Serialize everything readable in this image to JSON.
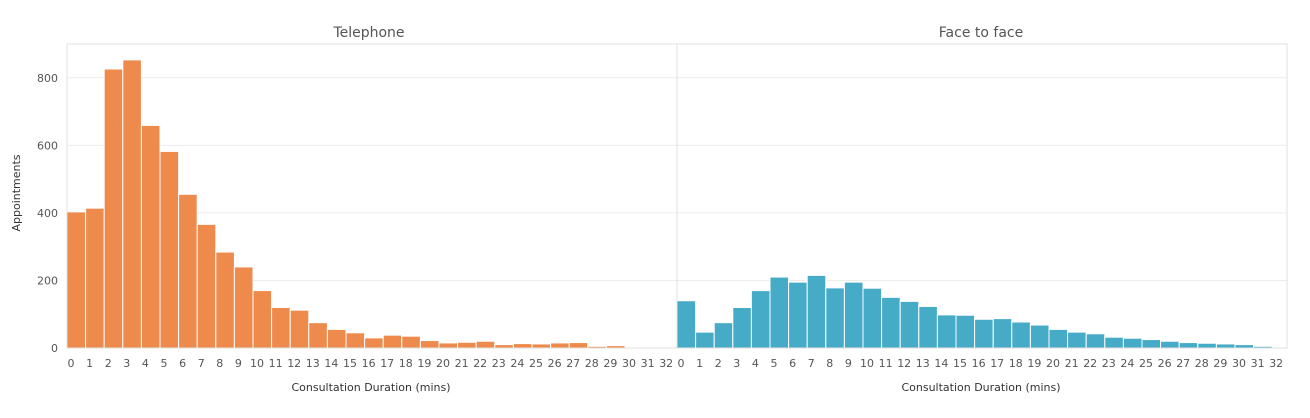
{
  "chart_data": {
    "type": "bar",
    "ylabel": "Appointments",
    "ylim": [
      0,
      900
    ],
    "yticks": [
      0,
      200,
      400,
      600,
      800
    ],
    "xticks": [
      0,
      1,
      2,
      3,
      4,
      5,
      6,
      7,
      8,
      9,
      10,
      11,
      12,
      13,
      14,
      15,
      16,
      17,
      18,
      19,
      20,
      21,
      22,
      23,
      24,
      25,
      26,
      27,
      28,
      29,
      30,
      31,
      32
    ],
    "grid": true,
    "panels": [
      {
        "title": "Telephone",
        "xlabel": "Consultation Duration (mins)",
        "color": "#ED8A4C",
        "bins_start": [
          0,
          1,
          2,
          3,
          4,
          5,
          6,
          7,
          8,
          9,
          10,
          11,
          12,
          13,
          14,
          15,
          16,
          17,
          18,
          19,
          20,
          21,
          22,
          23,
          24,
          25,
          26,
          27,
          28,
          29,
          30,
          31
        ],
        "values": [
          403,
          414,
          826,
          853,
          659,
          582,
          455,
          366,
          284,
          240,
          170,
          120,
          112,
          75,
          55,
          45,
          30,
          38,
          35,
          22,
          15,
          17,
          20,
          10,
          13,
          12,
          15,
          16,
          5,
          7,
          2,
          1
        ]
      },
      {
        "title": "Face to face",
        "xlabel": "Consultation Duration (mins)",
        "color": "#45ABC6",
        "bins_start": [
          0,
          1,
          2,
          3,
          4,
          5,
          6,
          7,
          8,
          9,
          10,
          11,
          12,
          13,
          14,
          15,
          16,
          17,
          18,
          19,
          20,
          21,
          22,
          23,
          24,
          25,
          26,
          27,
          28,
          29,
          30,
          31
        ],
        "values": [
          140,
          47,
          75,
          120,
          170,
          210,
          195,
          215,
          178,
          195,
          177,
          150,
          138,
          123,
          98,
          97,
          85,
          87,
          77,
          68,
          55,
          47,
          42,
          32,
          29,
          25,
          20,
          16,
          14,
          12,
          10,
          5
        ]
      }
    ]
  }
}
